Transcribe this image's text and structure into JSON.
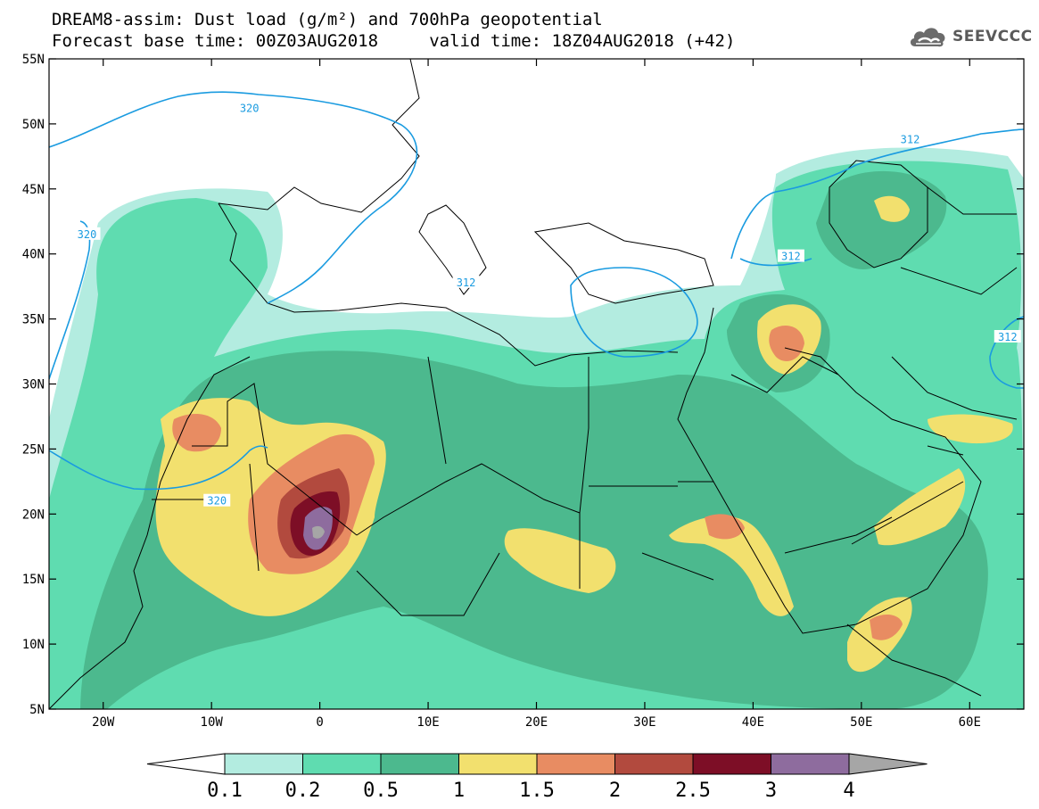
{
  "title": {
    "line1": "DREAM8-assim: Dust load (g/m²) and 700hPa geopotential",
    "line2": "Forecast base time: 00Z03AUG2018     valid time: 18Z04AUG2018 (+42)"
  },
  "logo": {
    "text": "SEEVCCC",
    "icon": "cloud-icon"
  },
  "map": {
    "lon_range": [
      -25,
      65
    ],
    "lat_range": [
      5,
      55
    ],
    "lon_ticks": [
      {
        "lon": -20,
        "label": "20W"
      },
      {
        "lon": -10,
        "label": "10W"
      },
      {
        "lon": 0,
        "label": "0"
      },
      {
        "lon": 10,
        "label": "10E"
      },
      {
        "lon": 20,
        "label": "20E"
      },
      {
        "lon": 30,
        "label": "30E"
      },
      {
        "lon": 40,
        "label": "40E"
      },
      {
        "lon": 50,
        "label": "50E"
      },
      {
        "lon": 60,
        "label": "60E"
      }
    ],
    "lat_ticks": [
      {
        "lat": 55,
        "label": "55N"
      },
      {
        "lat": 50,
        "label": "50N"
      },
      {
        "lat": 45,
        "label": "45N"
      },
      {
        "lat": 40,
        "label": "40N"
      },
      {
        "lat": 35,
        "label": "35N"
      },
      {
        "lat": 30,
        "label": "30N"
      },
      {
        "lat": 25,
        "label": "25N"
      },
      {
        "lat": 20,
        "label": "20N"
      },
      {
        "lat": 15,
        "label": "15N"
      },
      {
        "lat": 10,
        "label": "10N"
      },
      {
        "lat": 5,
        "label": "5N"
      }
    ],
    "contour_labels": [
      {
        "text": "320",
        "lon": -21.5,
        "lat": 41.5
      },
      {
        "text": "320",
        "lon": -9.5,
        "lat": 21.0
      },
      {
        "text": "320",
        "lon": -6.5,
        "lat": 51.2
      },
      {
        "text": "312",
        "lon": 13.5,
        "lat": 37.8
      },
      {
        "text": "312",
        "lon": 43.5,
        "lat": 39.8
      },
      {
        "text": "312",
        "lon": 54.5,
        "lat": 48.8
      },
      {
        "text": "312",
        "lon": 63.5,
        "lat": 33.6
      }
    ],
    "colors": {
      "level_0_1": "#b3ece0",
      "level_0_2": "#5fdcb0",
      "level_0_5": "#4cb98e",
      "level_1": "#f2e06e",
      "level_1_5": "#e88c62",
      "level_2": "#b24a3e",
      "level_2_5": "#7d0e26",
      "level_3": "#8e6c9e",
      "level_4": "#a6a6a6",
      "contour": "#1a9be0",
      "borders": "#000000"
    }
  },
  "colorbar": {
    "labels": [
      "0.1",
      "0.2",
      "0.5",
      "1",
      "1.5",
      "2",
      "2.5",
      "3",
      "4"
    ],
    "colors": [
      "#b3ece0",
      "#5fdcb0",
      "#4cb98e",
      "#f2e06e",
      "#e88c62",
      "#b24a3e",
      "#7d0e26",
      "#8e6c9e",
      "#a6a6a6"
    ]
  }
}
